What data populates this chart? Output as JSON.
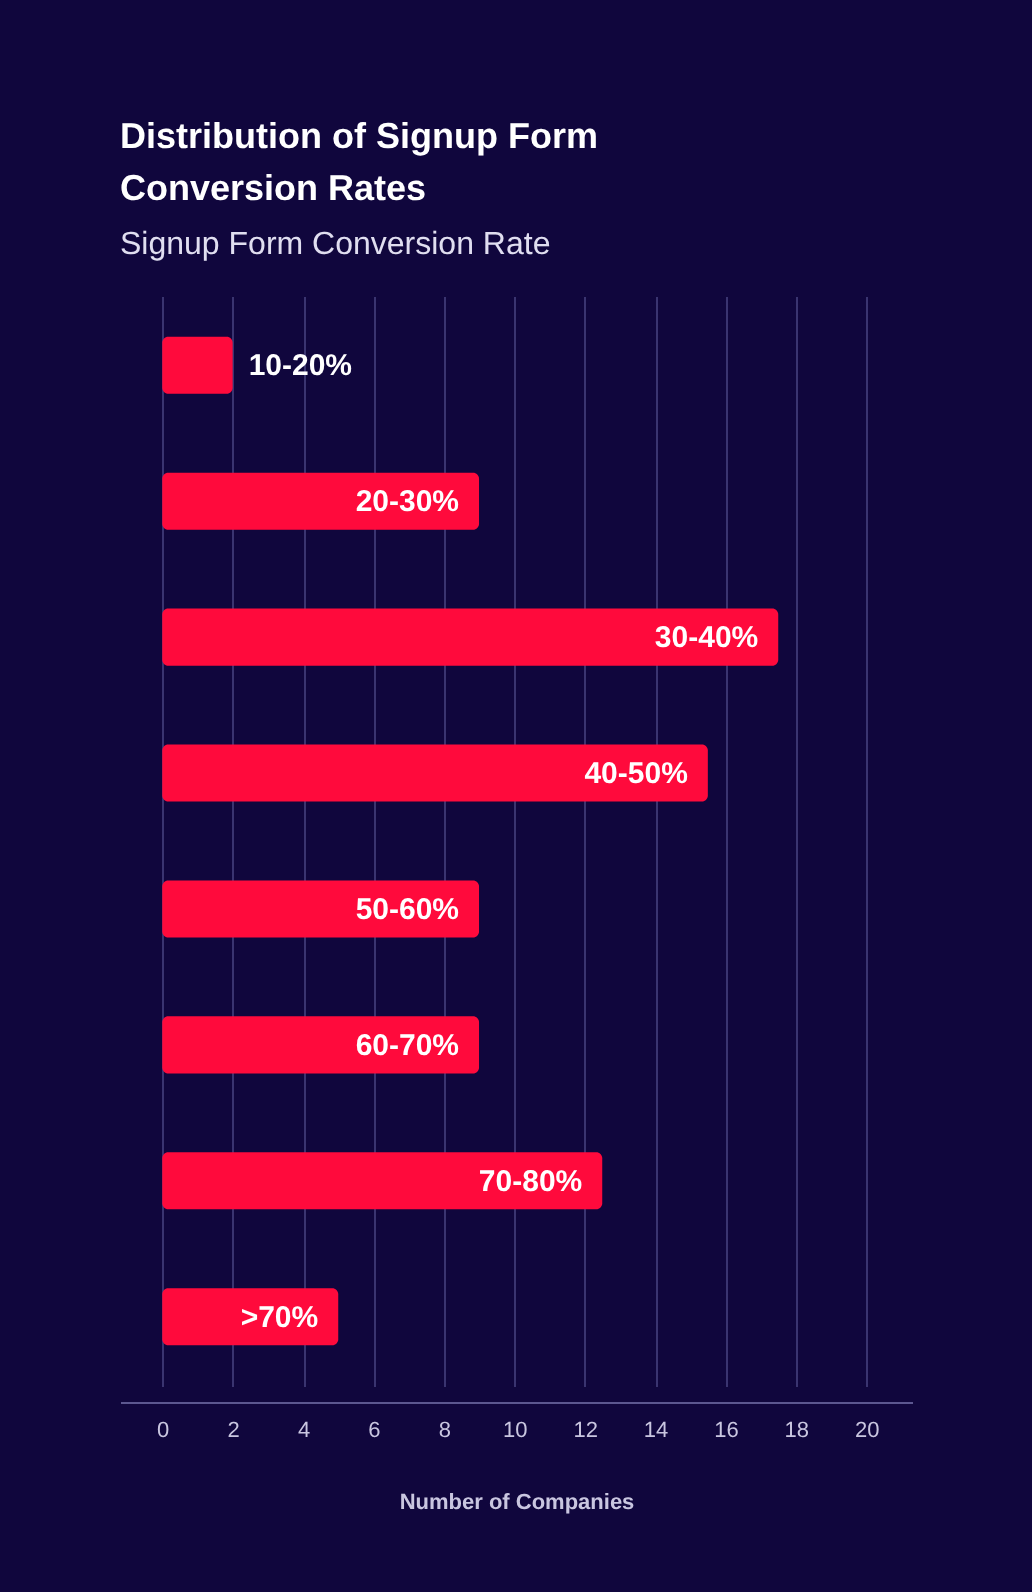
{
  "chart_data": {
    "type": "bar",
    "orientation": "horizontal",
    "title": "Distribution of Signup Form Conversion Rates",
    "subtitle": "Signup Form Conversion Rate",
    "xlabel": "Number of Companies",
    "categories": [
      "10-20%",
      "20-30%",
      "30-40%",
      "40-50%",
      "50-60%",
      "60-70%",
      "70-80%",
      ">70%"
    ],
    "values": [
      2,
      9,
      17.5,
      15.5,
      9,
      9,
      12.5,
      5
    ],
    "color": "#ff0a3c",
    "xlim": [
      -1.2,
      21.3
    ],
    "xticks": [
      0,
      2,
      4,
      6,
      8,
      10,
      12,
      14,
      16,
      18,
      20
    ],
    "grid": "x",
    "tick_labels": "x"
  }
}
